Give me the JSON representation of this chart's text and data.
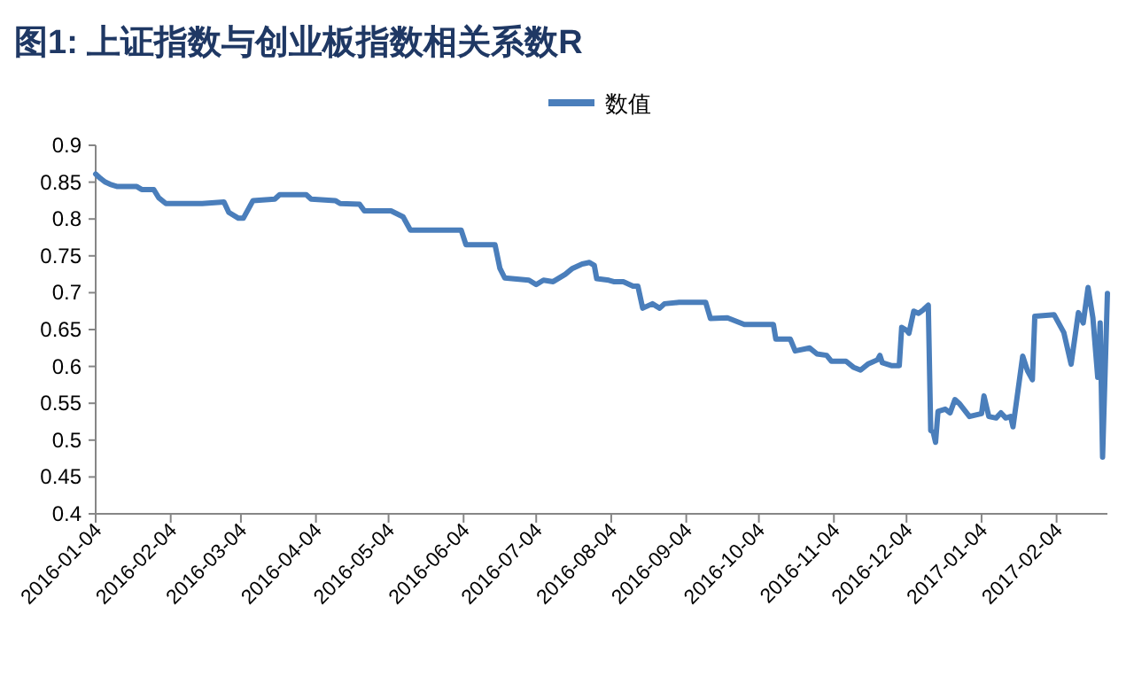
{
  "chart_data": {
    "type": "line",
    "title": "图1: 上证指数与创业板指数相关系数R",
    "x": [
      "2016-01-04",
      "2016-01-06",
      "2016-01-08",
      "2016-01-10",
      "2016-01-13",
      "2016-01-21",
      "2016-01-23",
      "2016-01-28",
      "2016-01-30",
      "2016-02-02",
      "2016-02-17",
      "2016-02-26",
      "2016-02-28",
      "2016-03-03",
      "2016-03-05",
      "2016-03-09",
      "2016-03-18",
      "2016-03-20",
      "2016-03-31",
      "2016-04-02",
      "2016-04-12",
      "2016-04-14",
      "2016-04-22",
      "2016-04-24",
      "2016-05-05",
      "2016-05-10",
      "2016-05-13",
      "2016-05-27",
      "2016-06-03",
      "2016-06-05",
      "2016-06-17",
      "2016-06-19",
      "2016-06-21",
      "2016-07-01",
      "2016-07-04",
      "2016-07-07",
      "2016-07-11",
      "2016-07-16",
      "2016-07-19",
      "2016-07-23",
      "2016-07-26",
      "2016-07-28",
      "2016-07-29",
      "2016-08-03",
      "2016-08-05",
      "2016-08-09",
      "2016-08-13",
      "2016-08-15",
      "2016-08-17",
      "2016-08-21",
      "2016-08-24",
      "2016-08-26",
      "2016-09-01",
      "2016-09-12",
      "2016-09-14",
      "2016-09-21",
      "2016-09-28",
      "2016-10-10",
      "2016-10-11",
      "2016-10-17",
      "2016-10-19",
      "2016-10-25",
      "2016-10-28",
      "2016-11-01",
      "2016-11-03",
      "2016-11-09",
      "2016-11-12",
      "2016-11-15",
      "2016-11-18",
      "2016-11-22",
      "2016-11-23",
      "2016-11-24",
      "2016-11-28",
      "2016-12-01",
      "2016-12-02",
      "2016-12-04",
      "2016-12-05",
      "2016-12-07",
      "2016-12-09",
      "2016-12-11",
      "2016-12-13",
      "2016-12-14",
      "2016-12-15",
      "2016-12-16",
      "2016-12-17",
      "2016-12-20",
      "2016-12-22",
      "2016-12-24",
      "2016-12-26",
      "2016-12-30",
      "2017-01-04",
      "2017-01-05",
      "2017-01-07",
      "2017-01-10",
      "2017-01-12",
      "2017-01-14",
      "2017-01-16",
      "2017-01-17",
      "2017-01-19",
      "2017-01-21",
      "2017-01-23",
      "2017-01-25",
      "2017-01-26",
      "2017-02-03",
      "2017-02-07",
      "2017-02-10",
      "2017-02-13",
      "2017-02-15",
      "2017-02-17",
      "2017-02-19",
      "2017-02-21",
      "2017-02-22",
      "2017-02-23",
      "2017-02-25"
    ],
    "series": [
      {
        "name": "数值",
        "color": "#4a7ebb",
        "values": [
          0.861,
          0.855,
          0.85,
          0.847,
          0.844,
          0.844,
          0.84,
          0.84,
          0.829,
          0.821,
          0.821,
          0.823,
          0.809,
          0.801,
          0.801,
          0.825,
          0.827,
          0.833,
          0.833,
          0.827,
          0.825,
          0.821,
          0.82,
          0.811,
          0.811,
          0.803,
          0.785,
          0.785,
          0.785,
          0.765,
          0.765,
          0.733,
          0.72,
          0.717,
          0.711,
          0.717,
          0.715,
          0.725,
          0.733,
          0.739,
          0.741,
          0.737,
          0.719,
          0.717,
          0.715,
          0.715,
          0.709,
          0.709,
          0.679,
          0.685,
          0.679,
          0.685,
          0.687,
          0.687,
          0.665,
          0.666,
          0.657,
          0.657,
          0.637,
          0.637,
          0.621,
          0.625,
          0.617,
          0.615,
          0.607,
          0.607,
          0.599,
          0.595,
          0.603,
          0.609,
          0.615,
          0.605,
          0.601,
          0.601,
          0.653,
          0.649,
          0.645,
          0.675,
          0.672,
          0.677,
          0.683,
          0.513,
          0.511,
          0.497,
          0.539,
          0.542,
          0.537,
          0.555,
          0.549,
          0.532,
          0.536,
          0.56,
          0.532,
          0.53,
          0.537,
          0.53,
          0.532,
          0.518,
          0.566,
          0.614,
          0.594,
          0.582,
          0.668,
          0.67,
          0.646,
          0.603,
          0.673,
          0.659,
          0.707,
          0.666,
          0.585,
          0.659,
          0.477,
          0.699
        ]
      }
    ],
    "xlim": [
      "2016-01-04",
      "2017-02-25"
    ],
    "xticks": [
      "2016-01-04",
      "2016-02-04",
      "2016-03-04",
      "2016-04-04",
      "2016-05-04",
      "2016-06-04",
      "2016-07-04",
      "2016-08-04",
      "2016-09-04",
      "2016-10-04",
      "2016-11-04",
      "2016-12-04",
      "2017-01-04",
      "2017-02-04"
    ],
    "ylim": [
      0.4,
      0.9
    ],
    "yticks": [
      0.4,
      0.45,
      0.5,
      0.55,
      0.6,
      0.65,
      0.7,
      0.75,
      0.8,
      0.85,
      0.9
    ],
    "legend": "top",
    "grid": false,
    "marker": "none",
    "line_style": "solid"
  }
}
